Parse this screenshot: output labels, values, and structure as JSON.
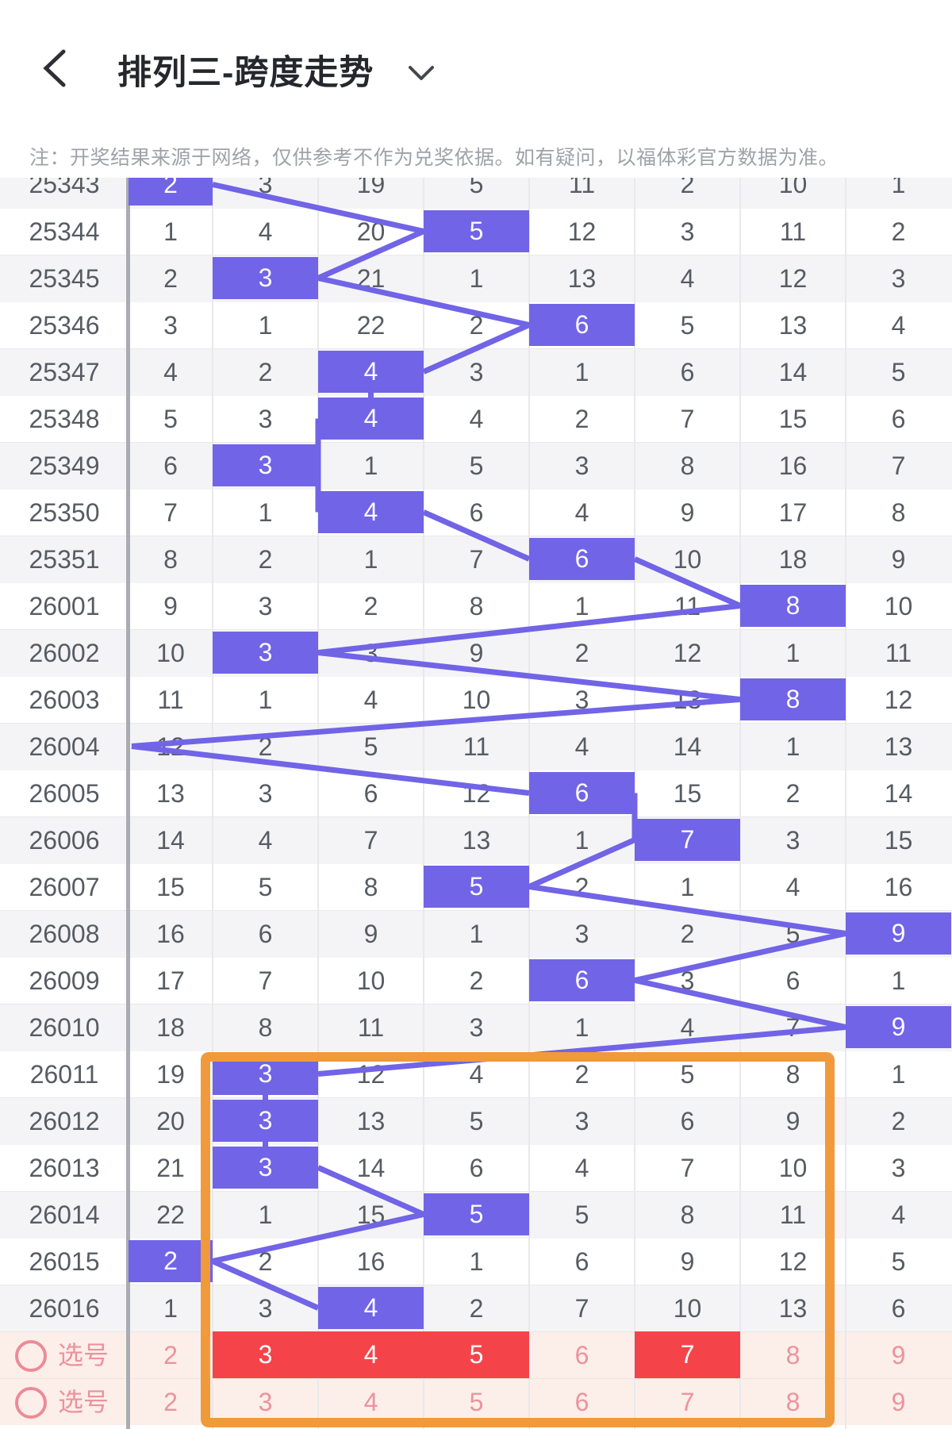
{
  "header": {
    "title": "排列三-跨度走势",
    "back_icon": "chevron-left",
    "dropdown_icon": "chevron-down",
    "action_icons": [
      "floating-window",
      "share",
      "settings"
    ]
  },
  "notice": "注：开奖结果来源于网络，仅供参考不作为兑奖依据。如有疑问，以福体彩官方数据为准。",
  "table": {
    "rows": [
      {
        "period": "25343",
        "cells": [
          2,
          3,
          19,
          5,
          11,
          2,
          10,
          1
        ],
        "hit": 0
      },
      {
        "period": "25344",
        "cells": [
          1,
          4,
          20,
          5,
          12,
          3,
          11,
          2
        ],
        "hit": 3
      },
      {
        "period": "25345",
        "cells": [
          2,
          3,
          21,
          1,
          13,
          4,
          12,
          3
        ],
        "hit": 1
      },
      {
        "period": "25346",
        "cells": [
          3,
          1,
          22,
          2,
          6,
          5,
          13,
          4
        ],
        "hit": 4
      },
      {
        "period": "25347",
        "cells": [
          4,
          2,
          4,
          3,
          1,
          6,
          14,
          5
        ],
        "hit": 2
      },
      {
        "period": "25348",
        "cells": [
          5,
          3,
          4,
          4,
          2,
          7,
          15,
          6
        ],
        "hit": 2
      },
      {
        "period": "25349",
        "cells": [
          6,
          3,
          1,
          5,
          3,
          8,
          16,
          7
        ],
        "hit": 1
      },
      {
        "period": "25350",
        "cells": [
          7,
          1,
          4,
          6,
          4,
          9,
          17,
          8
        ],
        "hit": 2
      },
      {
        "period": "25351",
        "cells": [
          8,
          2,
          1,
          7,
          6,
          10,
          18,
          9
        ],
        "hit": 4
      },
      {
        "period": "26001",
        "cells": [
          9,
          3,
          2,
          8,
          1,
          11,
          8,
          10
        ],
        "hit": 6
      },
      {
        "period": "26002",
        "cells": [
          10,
          3,
          3,
          9,
          2,
          12,
          1,
          11
        ],
        "hit": 1
      },
      {
        "period": "26003",
        "cells": [
          11,
          1,
          4,
          10,
          3,
          13,
          8,
          12
        ],
        "hit": 6
      },
      {
        "period": "26004",
        "cells": [
          12,
          2,
          5,
          11,
          4,
          14,
          1,
          13
        ],
        "hit": -1
      },
      {
        "period": "26005",
        "cells": [
          13,
          3,
          6,
          12,
          6,
          15,
          2,
          14
        ],
        "hit": 4
      },
      {
        "period": "26006",
        "cells": [
          14,
          4,
          7,
          13,
          1,
          7,
          3,
          15
        ],
        "hit": 5
      },
      {
        "period": "26007",
        "cells": [
          15,
          5,
          8,
          5,
          2,
          1,
          4,
          16
        ],
        "hit": 3
      },
      {
        "period": "26008",
        "cells": [
          16,
          6,
          9,
          1,
          3,
          2,
          5,
          9
        ],
        "hit": 7
      },
      {
        "period": "26009",
        "cells": [
          17,
          7,
          10,
          2,
          6,
          3,
          6,
          1
        ],
        "hit": 4
      },
      {
        "period": "26010",
        "cells": [
          18,
          8,
          11,
          3,
          1,
          4,
          7,
          9
        ],
        "hit": 7
      },
      {
        "period": "26011",
        "cells": [
          19,
          3,
          12,
          4,
          2,
          5,
          8,
          1
        ],
        "hit": 1
      },
      {
        "period": "26012",
        "cells": [
          20,
          3,
          13,
          5,
          3,
          6,
          9,
          2
        ],
        "hit": 1
      },
      {
        "period": "26013",
        "cells": [
          21,
          3,
          14,
          6,
          4,
          7,
          10,
          3
        ],
        "hit": 1
      },
      {
        "period": "26014",
        "cells": [
          22,
          1,
          15,
          5,
          5,
          8,
          11,
          4
        ],
        "hit": 3
      },
      {
        "period": "26015",
        "cells": [
          2,
          2,
          16,
          1,
          6,
          9,
          12,
          5
        ],
        "hit": 0
      },
      {
        "period": "26016",
        "cells": [
          1,
          3,
          4,
          2,
          7,
          10,
          13,
          6
        ],
        "hit": 2
      }
    ],
    "pick_rows": [
      {
        "label": "选号",
        "values": [
          2,
          3,
          4,
          5,
          6,
          7,
          8,
          9
        ],
        "selected": [
          1,
          2,
          3,
          5
        ]
      },
      {
        "label": "选号",
        "values": [
          2,
          3,
          4,
          5,
          6,
          7,
          8,
          9
        ],
        "selected": []
      }
    ]
  },
  "colors": {
    "accent_purple": "#7164e6",
    "selected_red": "#f4444a",
    "pick_row_bg": "#fcefe9",
    "pick_text_pink": "#ed929e",
    "stripe_gray": "#f4f4f6",
    "cell_text": "#575c63",
    "highlight_box_orange": "#f09a3b",
    "notice_text": "#9fa2a8",
    "title_text": "#26272c"
  }
}
